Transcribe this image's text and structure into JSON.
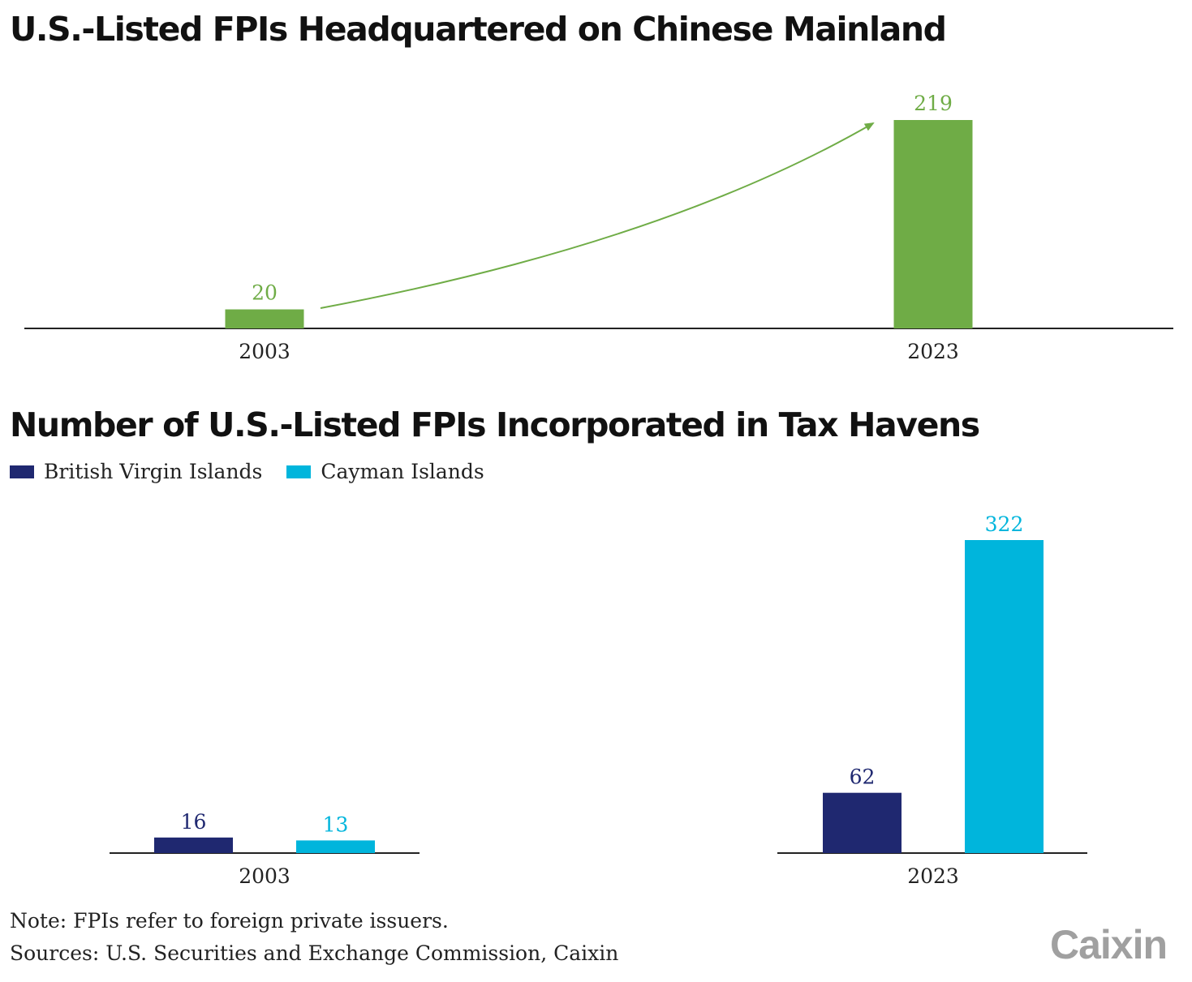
{
  "chart_data": [
    {
      "type": "bar",
      "title": "U.S.-Listed FPIs Headquartered on Chinese Mainland",
      "categories": [
        "2003",
        "2023"
      ],
      "series": [
        {
          "values": [
            20,
            219
          ],
          "color": "#6fac46"
        }
      ],
      "data_labels": [
        "20",
        "219"
      ],
      "annotation": "green curved arrow from 2003 bar to 2023 bar indicating growth",
      "grid": false
    },
    {
      "type": "bar",
      "title": "Number of U.S.-Listed FPIs Incorporated in Tax Havens",
      "categories": [
        "2003",
        "2023"
      ],
      "series": [
        {
          "name": "British Virgin Islands",
          "values": [
            16,
            62
          ],
          "color": "#1f2870",
          "labels": [
            "16",
            "62"
          ]
        },
        {
          "name": "Cayman Islands",
          "values": [
            13,
            322
          ],
          "color": "#00b5dc",
          "labels": [
            "13",
            "322"
          ]
        }
      ],
      "legend_position": "top-left",
      "grid": false
    }
  ],
  "note": "Note: FPIs refer to foreign private issuers.",
  "sources": "Sources: U.S. Securities and Exchange Commission, Caixin",
  "logo": "Caixin"
}
